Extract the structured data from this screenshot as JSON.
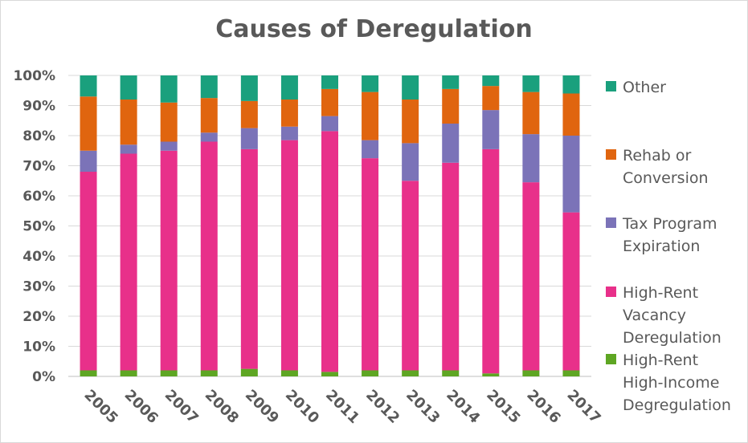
{
  "chart_data": {
    "type": "stacked-bar-100",
    "title": "Causes of Deregulation",
    "xlabel": "",
    "ylabel": "",
    "ylim": [
      0,
      100
    ],
    "y_ticks": [
      "0%",
      "10%",
      "20%",
      "30%",
      "40%",
      "50%",
      "60%",
      "70%",
      "80%",
      "90%",
      "100%"
    ],
    "categories": [
      "2005",
      "2006",
      "2007",
      "2008",
      "2009",
      "2010",
      "2011",
      "2012",
      "2013",
      "2014",
      "2015",
      "2016",
      "2017"
    ],
    "grid": true,
    "legend_position": "right",
    "series": [
      {
        "name": "High-Rent High-Income Degregulation",
        "color": "#5ea623",
        "values": [
          2,
          2,
          2,
          2,
          2.5,
          2,
          1.5,
          2,
          2,
          2,
          1,
          2,
          2
        ]
      },
      {
        "name": "High-Rent Vacancy Deregulation",
        "color": "#e8308a",
        "values": [
          66,
          72,
          73,
          76,
          73,
          76.5,
          80,
          70.5,
          63,
          69,
          74.5,
          62.5,
          52.5
        ]
      },
      {
        "name": "Tax Program Expiration",
        "color": "#7b73b8",
        "values": [
          7,
          3,
          3,
          3,
          7,
          4.5,
          5,
          6,
          12.5,
          13,
          13,
          16,
          25.5
        ]
      },
      {
        "name": "Rehab or Conversion",
        "color": "#e0650f",
        "values": [
          18,
          15,
          13,
          11.5,
          9,
          9,
          9,
          16,
          14.5,
          11.5,
          8,
          14,
          14
        ]
      },
      {
        "name": "Other",
        "color": "#1aa07d",
        "values": [
          7,
          8,
          9,
          7.5,
          8.5,
          8,
          4.5,
          5.5,
          8,
          4.5,
          3.5,
          5.5,
          6
        ]
      }
    ],
    "legend": [
      {
        "lines": [
          "Other"
        ],
        "color": "#1aa07d"
      },
      {
        "lines": [
          "Rehab or",
          "Conversion"
        ],
        "color": "#e0650f"
      },
      {
        "lines": [
          "Tax Program",
          "Expiration"
        ],
        "color": "#7b73b8"
      },
      {
        "lines": [
          "High-Rent",
          "Vacancy",
          "Deregulation"
        ],
        "color": "#e8308a"
      },
      {
        "lines": [
          "High-Rent",
          "High-Income",
          "Degregulation"
        ],
        "color": "#5ea623"
      }
    ]
  }
}
